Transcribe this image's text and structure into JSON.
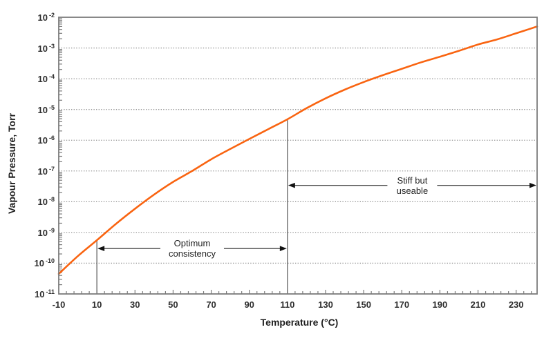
{
  "chart_data": {
    "type": "line",
    "title": "",
    "xlabel": "Temperature (°C)",
    "ylabel": "Vapour Pressure, Torr",
    "xlim": [
      -10,
      241
    ],
    "ylim_exponents": [
      -11,
      -2
    ],
    "x_ticks": [
      -10,
      10,
      30,
      50,
      70,
      90,
      110,
      130,
      150,
      170,
      190,
      210,
      230
    ],
    "x_minor_step": 4,
    "y_tick_exponents": [
      -2,
      -3,
      -4,
      -5,
      -6,
      -7,
      -8,
      -9,
      -10,
      -11
    ],
    "grid": "horizontal-dotted-per-decade",
    "legend": "none",
    "series": [
      {
        "name": "vapour pressure curve",
        "points": [
          [
            -10,
            4.5e-11
          ],
          [
            0,
            1.7e-10
          ],
          [
            10,
            5.6e-10
          ],
          [
            20,
            1.9e-09
          ],
          [
            30,
            5.9e-09
          ],
          [
            40,
            1.7e-08
          ],
          [
            50,
            4.4e-08
          ],
          [
            60,
            1e-07
          ],
          [
            70,
            2.4e-07
          ],
          [
            80,
            5.2e-07
          ],
          [
            90,
            1.1e-06
          ],
          [
            100,
            2.3e-06
          ],
          [
            110,
            4.8e-06
          ],
          [
            120,
            1.1e-05
          ],
          [
            130,
            2.3e-05
          ],
          [
            140,
            4.4e-05
          ],
          [
            150,
            7.8e-05
          ],
          [
            160,
            0.00013
          ],
          [
            170,
            0.00021
          ],
          [
            180,
            0.00034
          ],
          [
            190,
            0.00052
          ],
          [
            200,
            0.00081
          ],
          [
            210,
            0.0013
          ],
          [
            220,
            0.0019
          ],
          [
            230,
            0.003
          ],
          [
            241,
            0.005
          ]
        ]
      }
    ],
    "annotations": [
      {
        "label": "Optimum consistency",
        "lines": [
          "Optimum",
          "consistency"
        ],
        "x_start": 10,
        "x_end": 110,
        "arrow_pressure": 3e-10,
        "markers": [
          10,
          110
        ]
      },
      {
        "label": "Stiff but useable",
        "lines": [
          "Stiff but",
          "useable"
        ],
        "x_start": 110,
        "x_end": 241,
        "arrow_pressure": 3.4e-08,
        "markers": [
          110
        ]
      }
    ]
  },
  "colors": {
    "curve": "#f96411",
    "grid": "#989898",
    "border": "#7b7b7b",
    "marker_line": "#6f6f6f",
    "arrow_line": "#4d4d4d",
    "arrow_head": "#111111",
    "text": "#2e2e2e",
    "background": "#ffffff"
  }
}
